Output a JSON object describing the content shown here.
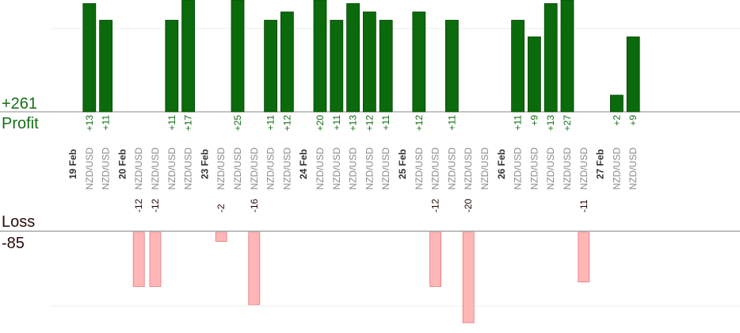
{
  "summary": {
    "profit_total": "+261",
    "profit_label": "Profit",
    "loss_label": "Loss",
    "loss_total": "-85"
  },
  "colors": {
    "profit_bar": "#0b6a0b",
    "profit_bar_edge": "#064606",
    "profit_text": "#146e14",
    "loss_bar": "#ffb6b6",
    "loss_bar_edge": "#e07878",
    "loss_text": "#2b0a0a",
    "axis": "#888888",
    "grid": "#eeeeee",
    "date_text": "#333333",
    "pair_text": "#8a8a8a"
  },
  "chart_data": {
    "type": "bar",
    "date_labels": [
      "19 Feb",
      "20 Feb",
      "23 Feb",
      "24 Feb",
      "25 Feb",
      "26 Feb",
      "27 Feb"
    ],
    "pair": "NZD/USD",
    "columns": [
      {
        "kind": "date",
        "text": "19 Feb"
      },
      {
        "kind": "trade",
        "value": 13,
        "label": "+13"
      },
      {
        "kind": "trade",
        "value": 11,
        "label": "+11"
      },
      {
        "kind": "date",
        "text": "20 Feb"
      },
      {
        "kind": "trade",
        "value": -12,
        "label": "-12"
      },
      {
        "kind": "trade",
        "value": -12,
        "label": "-12"
      },
      {
        "kind": "trade",
        "value": 11,
        "label": "+11"
      },
      {
        "kind": "trade",
        "value": 17,
        "label": "+17"
      },
      {
        "kind": "date",
        "text": "23 Feb"
      },
      {
        "kind": "trade",
        "value": -2,
        "label": "-2"
      },
      {
        "kind": "trade",
        "value": 25,
        "label": "+25"
      },
      {
        "kind": "trade",
        "value": -16,
        "label": "-16"
      },
      {
        "kind": "trade",
        "value": 11,
        "label": "+11"
      },
      {
        "kind": "trade",
        "value": 12,
        "label": "+12"
      },
      {
        "kind": "date",
        "text": "24 Feb"
      },
      {
        "kind": "trade",
        "value": 20,
        "label": "+20"
      },
      {
        "kind": "trade",
        "value": 11,
        "label": "+11"
      },
      {
        "kind": "trade",
        "value": 13,
        "label": "+13"
      },
      {
        "kind": "trade",
        "value": 12,
        "label": "+12"
      },
      {
        "kind": "trade",
        "value": 11,
        "label": "+11"
      },
      {
        "kind": "date",
        "text": "25 Feb"
      },
      {
        "kind": "trade",
        "value": 12,
        "label": "+12"
      },
      {
        "kind": "trade",
        "value": -12,
        "label": "-12"
      },
      {
        "kind": "trade",
        "value": 11,
        "label": "+11"
      },
      {
        "kind": "trade",
        "value": -20,
        "label": "-20"
      },
      {
        "kind": "trade",
        "value": null,
        "label": ""
      },
      {
        "kind": "date",
        "text": "26 Feb"
      },
      {
        "kind": "trade",
        "value": 11,
        "label": "+11"
      },
      {
        "kind": "trade",
        "value": 9,
        "label": "+9"
      },
      {
        "kind": "trade",
        "value": 13,
        "label": "+13"
      },
      {
        "kind": "trade",
        "value": 27,
        "label": "+27"
      },
      {
        "kind": "trade",
        "value": -11,
        "label": "-11"
      },
      {
        "kind": "date",
        "text": "27 Feb"
      },
      {
        "kind": "trade",
        "value": 2,
        "label": "+2"
      },
      {
        "kind": "trade",
        "value": 9,
        "label": "+9"
      }
    ],
    "profit_ylim": [
      0,
      14
    ],
    "loss_ylim": [
      -22,
      0
    ]
  }
}
